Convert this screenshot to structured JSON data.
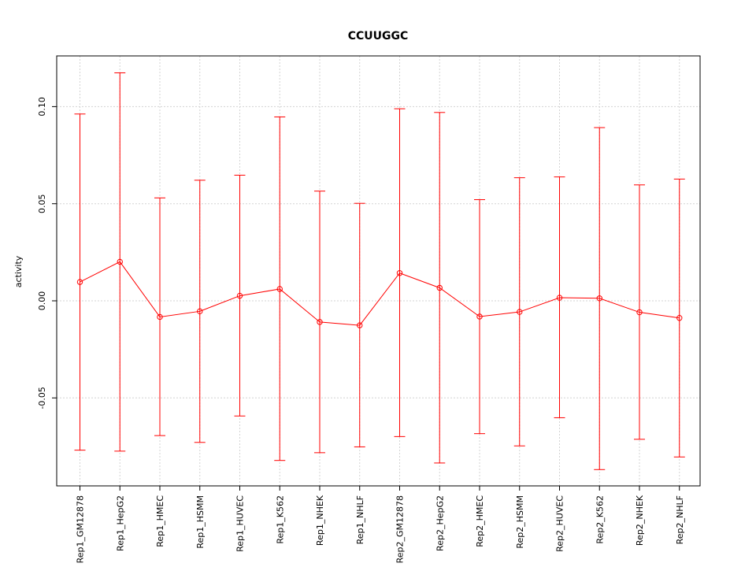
{
  "chart_data": {
    "type": "line",
    "title": "CCUUGGC",
    "xlabel": "",
    "ylabel": "activity",
    "categories": [
      "Rep1_GM12878",
      "Rep1_HepG2",
      "Rep1_HMEC",
      "Rep1_HSMM",
      "Rep1_HUVEC",
      "Rep1_K562",
      "Rep1_NHEK",
      "Rep1_NHLF",
      "Rep2_GM12878",
      "Rep2_HepG2",
      "Rep2_HMEC",
      "Rep2_HSMM",
      "Rep2_HUVEC",
      "Rep2_K562",
      "Rep2_NHEK",
      "Rep2_NHLF"
    ],
    "series": [
      {
        "values": [
          0.0097,
          0.0201,
          -0.0083,
          -0.0054,
          0.0026,
          0.0061,
          -0.0109,
          -0.0126,
          0.0143,
          0.0067,
          -0.0081,
          -0.0057,
          0.0016,
          0.0013,
          -0.0059,
          -0.0088
        ],
        "upper": [
          0.0962,
          0.1174,
          0.053,
          0.0621,
          0.0647,
          0.0947,
          0.0565,
          0.0502,
          0.0989,
          0.097,
          0.0521,
          0.0634,
          0.0638,
          0.0892,
          0.0597,
          0.0627
        ],
        "lower": [
          -0.0769,
          -0.0774,
          -0.0694,
          -0.0729,
          -0.0593,
          -0.0822,
          -0.0782,
          -0.0752,
          -0.0699,
          -0.0835,
          -0.0684,
          -0.0747,
          -0.0602,
          -0.0869,
          -0.0713,
          -0.0804
        ],
        "color": "#ff0000"
      }
    ],
    "yticks": [
      -0.05,
      0.0,
      0.05,
      0.1
    ],
    "ytick_labels": [
      "-0.05",
      "0.00",
      "0.05",
      "0.10"
    ],
    "ylim": [
      -0.095,
      0.125
    ],
    "grid": true,
    "grid_color": "#d3d3d3",
    "error_bars": true,
    "legend": "none"
  }
}
